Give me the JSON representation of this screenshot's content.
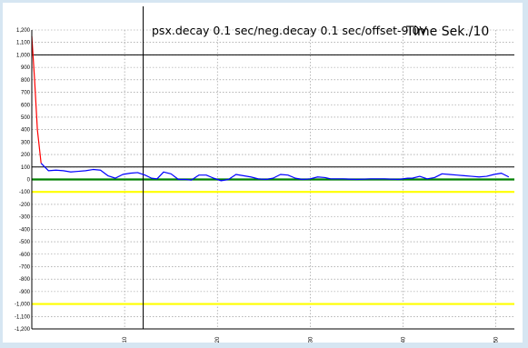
{
  "window": {
    "background": "#d6e6f2"
  },
  "chart_data": {
    "type": "line",
    "title": "psx.decay 0.1 sec/neg.decay 0.1 sec/offset-9.0V",
    "time_label": "Time Sek./10",
    "xlim": [
      0,
      52
    ],
    "ylim": [
      -1200,
      1200
    ],
    "y_ticks": [
      "1,200",
      "1,100",
      "1,000",
      "900",
      "800",
      "700",
      "600",
      "500",
      "400",
      "300",
      "200",
      "100",
      "0",
      "-100",
      "-200",
      "-300",
      "-400",
      "-500",
      "-600",
      "-700",
      "-800",
      "-900",
      "-1,000",
      "-1,100",
      "-1,200"
    ],
    "y_tick_values": [
      1200,
      1100,
      1000,
      900,
      800,
      700,
      600,
      500,
      400,
      300,
      200,
      100,
      0,
      -100,
      -200,
      -300,
      -400,
      -500,
      -600,
      -700,
      -800,
      -900,
      -1000,
      -1100,
      -1200
    ],
    "x_ticks": [
      "10",
      "20",
      "30",
      "40",
      "50"
    ],
    "x_tick_values": [
      10,
      20,
      30,
      40,
      50
    ],
    "grid": true,
    "reference_lines": [
      {
        "orientation": "horizontal",
        "y": 1000,
        "color": "#000000"
      },
      {
        "orientation": "horizontal",
        "y": 100,
        "color": "#000000"
      },
      {
        "orientation": "horizontal",
        "y": 0,
        "color": "#008000"
      },
      {
        "orientation": "horizontal",
        "y": -100,
        "color": "#ffff00"
      },
      {
        "orientation": "horizontal",
        "y": -1000,
        "color": "#ffff00"
      },
      {
        "orientation": "vertical",
        "x": 12,
        "color": "#000000"
      }
    ],
    "series": [
      {
        "color": "#ff0000",
        "x": [
          0,
          0.3,
          0.6,
          1.0
        ],
        "y": [
          1150,
          800,
          400,
          130
        ]
      },
      {
        "color": "#0000ff",
        "x": [
          1.0,
          1.8,
          2.6,
          3.4,
          4.2,
          5.0,
          5.8,
          6.6,
          7.4,
          8.2,
          9.0,
          9.8,
          10.6,
          11.4,
          12.2,
          12.9,
          13.5,
          14.2,
          15.0,
          15.8,
          16.6,
          17.2,
          18.0,
          18.8,
          19.6,
          20.4,
          21.2,
          22.0,
          22.8,
          23.6,
          24.4,
          25.2,
          26.0,
          26.8,
          27.6,
          28.4,
          29.2,
          30.0,
          30.8,
          31.6,
          32.2
        ],
        "y": [
          130,
          70,
          75,
          70,
          60,
          65,
          70,
          80,
          75,
          30,
          10,
          40,
          50,
          55,
          35,
          10,
          5,
          60,
          45,
          0,
          0,
          -5,
          35,
          35,
          10,
          -10,
          0,
          40,
          30,
          20,
          5,
          0,
          10,
          40,
          35,
          10,
          0,
          5,
          20,
          15,
          5
        ]
      },
      {
        "color": "#0000ff",
        "x": [
          32.2,
          33.5,
          35.0,
          36.5,
          38.0,
          39.5,
          40.5,
          41.0,
          41.8,
          42.6,
          43.4,
          44.2,
          45.0,
          45.8,
          46.6,
          47.4,
          48.2,
          49.0,
          49.8,
          50.6,
          51.4
        ],
        "y": [
          5,
          5,
          0,
          5,
          5,
          0,
          10,
          10,
          25,
          5,
          15,
          45,
          40,
          35,
          30,
          25,
          20,
          25,
          40,
          50,
          20
        ]
      }
    ]
  }
}
